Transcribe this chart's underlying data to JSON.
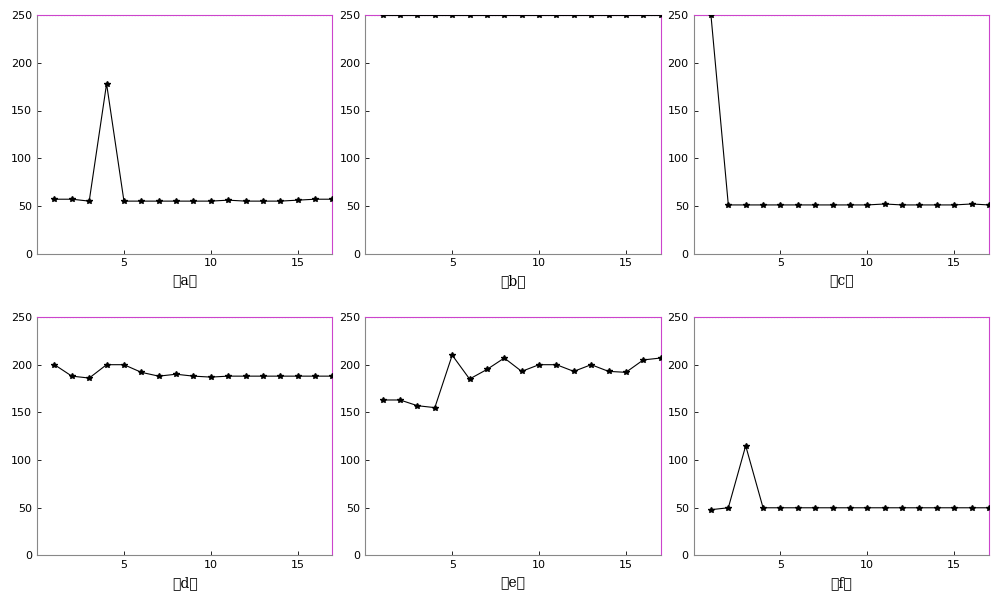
{
  "subplots": [
    {
      "label": "（a）",
      "x": [
        1,
        2,
        3,
        4,
        5,
        6,
        7,
        8,
        9,
        10,
        11,
        12,
        13,
        14,
        15,
        16,
        17
      ],
      "y": [
        57,
        57,
        55,
        178,
        55,
        55,
        55,
        55,
        55,
        55,
        56,
        55,
        55,
        55,
        56,
        57,
        57
      ]
    },
    {
      "label": "（b）",
      "x": [
        1,
        2,
        3,
        4,
        5,
        6,
        7,
        8,
        9,
        10,
        11,
        12,
        13,
        14,
        15,
        16,
        17
      ],
      "y": [
        250,
        250,
        250,
        250,
        250,
        250,
        250,
        250,
        250,
        250,
        250,
        250,
        250,
        250,
        250,
        250,
        250
      ]
    },
    {
      "label": "（c）",
      "x": [
        1,
        2,
        3,
        4,
        5,
        6,
        7,
        8,
        9,
        10,
        11,
        12,
        13,
        14,
        15,
        16,
        17
      ],
      "y": [
        250,
        51,
        51,
        51,
        51,
        51,
        51,
        51,
        51,
        51,
        52,
        51,
        51,
        51,
        51,
        52,
        51
      ]
    },
    {
      "label": "（d）",
      "x": [
        1,
        2,
        3,
        4,
        5,
        6,
        7,
        8,
        9,
        10,
        11,
        12,
        13,
        14,
        15,
        16,
        17
      ],
      "y": [
        200,
        188,
        186,
        200,
        200,
        192,
        188,
        190,
        188,
        187,
        188,
        188,
        188,
        188,
        188,
        188,
        188
      ]
    },
    {
      "label": "（e）",
      "x": [
        1,
        2,
        3,
        4,
        5,
        6,
        7,
        8,
        9,
        10,
        11,
        12,
        13,
        14,
        15,
        16,
        17
      ],
      "y": [
        163,
        163,
        157,
        155,
        210,
        185,
        195,
        207,
        193,
        200,
        200,
        193,
        200,
        193,
        192,
        205,
        207
      ]
    },
    {
      "label": "（f）",
      "x": [
        1,
        2,
        3,
        4,
        5,
        6,
        7,
        8,
        9,
        10,
        11,
        12,
        13,
        14,
        15,
        16,
        17
      ],
      "y": [
        48,
        50,
        115,
        50,
        50,
        50,
        50,
        50,
        50,
        50,
        50,
        50,
        50,
        50,
        50,
        50,
        50
      ]
    }
  ],
  "ylim": [
    0,
    250
  ],
  "xlim": [
    0,
    17
  ],
  "yticks": [
    0,
    50,
    100,
    150,
    200,
    250
  ],
  "xticks": [
    5,
    10,
    15
  ],
  "line_color": "#000000",
  "marker": "*",
  "markersize": 4,
  "linewidth": 0.8,
  "background_color": "#ffffff",
  "spine_top_color": "#cc44cc",
  "spine_right_color": "#cc44cc",
  "spine_bottom_color": "#888888",
  "spine_left_color": "#888888",
  "hline_color": "#44cc44",
  "hline_y": 250,
  "hline_style": "dotted",
  "fig_width": 10.0,
  "fig_height": 6.01,
  "dpi": 100,
  "label_fontsize": 10
}
